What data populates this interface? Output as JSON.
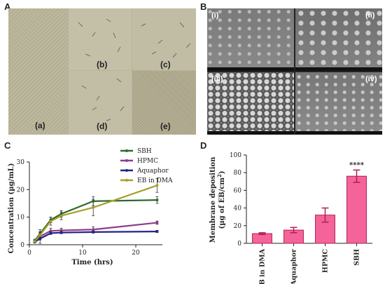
{
  "panels": {
    "A": {
      "letter": "A",
      "tiles": [
        "(a)",
        "(b)",
        "(c)",
        "(d)",
        "(e)"
      ]
    },
    "B": {
      "letter": "B",
      "tiles": [
        "(i)",
        "(ii)",
        "(iii)",
        "(iv)"
      ]
    },
    "C": {
      "letter": "C"
    },
    "D": {
      "letter": "D"
    }
  },
  "colors": {
    "SBH": "#2e6b2a",
    "HPMC": "#8e3a8a",
    "Aquaphor": "#23238a",
    "EB in DMA": "#a7a02b",
    "bar_fill": "#f4639a",
    "bar_edge": "#b0204f"
  },
  "chart_data": [
    {
      "type": "line",
      "panel": "C",
      "xlabel": "Time (hrs)",
      "ylabel": "Concentration (µg/mL)",
      "xlim": [
        0,
        25
      ],
      "ylim": [
        0,
        30
      ],
      "xticks": [
        "0",
        "10",
        "20"
      ],
      "yticks": [
        "0",
        "10",
        "20",
        "30"
      ],
      "legend_position": "top-right",
      "series": [
        {
          "name": "SBH",
          "x": [
            1,
            2,
            4,
            6,
            12,
            24
          ],
          "y": [
            1.5,
            4,
            9,
            11.2,
            15.8,
            16.2
          ],
          "err": [
            0.5,
            0.8,
            1.0,
            1.2,
            1.6,
            1.2
          ]
        },
        {
          "name": "HPMC",
          "x": [
            1,
            2,
            4,
            6,
            12,
            24
          ],
          "y": [
            1,
            3,
            5,
            5.2,
            5.5,
            8
          ],
          "err": [
            0.4,
            2.5,
            1.0,
            0.8,
            1.0,
            0.6
          ]
        },
        {
          "name": "Aquaphor",
          "x": [
            1,
            2,
            4,
            6,
            12,
            24
          ],
          "y": [
            1,
            2.2,
            4.2,
            4.4,
            4.6,
            4.8
          ],
          "err": [
            0.3,
            0.5,
            0.5,
            0.4,
            0.4,
            0.4
          ]
        },
        {
          "name": "EB in DMA",
          "x": [
            1,
            2,
            4,
            6,
            12,
            24
          ],
          "y": [
            1.2,
            3.5,
            8.5,
            10.5,
            13.5,
            21.5
          ],
          "err": [
            0.5,
            1.0,
            1.4,
            1.4,
            3.0,
            2.5
          ]
        }
      ]
    },
    {
      "type": "bar",
      "panel": "D",
      "ylabel_line1": "Membrane deposition",
      "ylabel_line2": "(µg of EB/cm",
      "ylabel_sup": "2",
      "ylabel_close": ")",
      "ylim": [
        0,
        100
      ],
      "yticks": [
        "0",
        "20",
        "40",
        "60",
        "80",
        "100"
      ],
      "categories": [
        "EB in DMA",
        "Aquaphor",
        "HPMC",
        "SBH"
      ],
      "values": [
        11,
        15,
        32,
        76
      ],
      "errors": [
        1,
        3,
        8,
        7
      ],
      "annotations": [
        "",
        "",
        "",
        "****"
      ]
    }
  ]
}
